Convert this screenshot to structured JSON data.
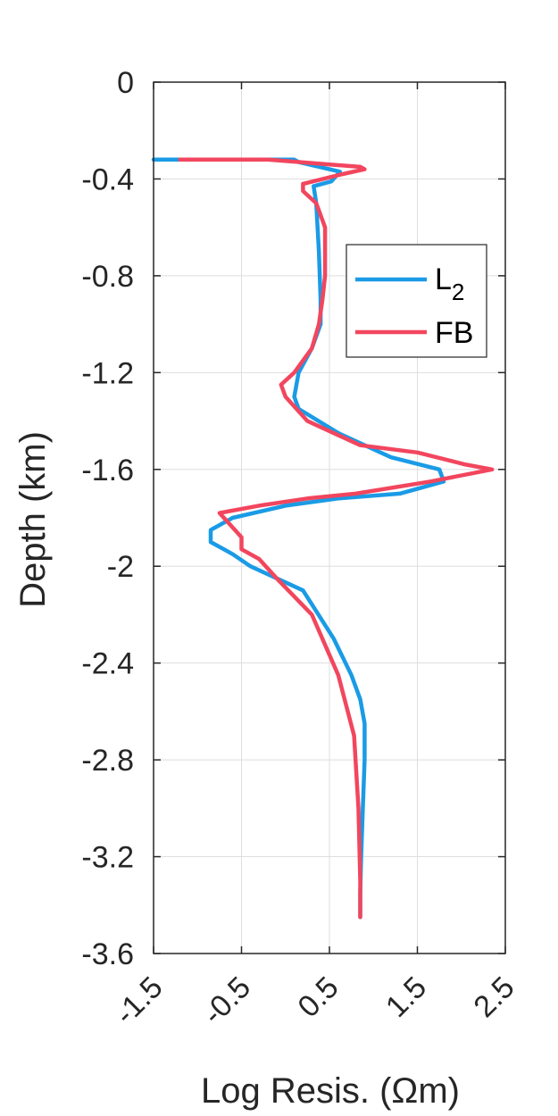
{
  "chart_data": {
    "type": "line",
    "xlabel": "Log Resis. (Ωm)",
    "ylabel": "Depth (km)",
    "xlim": [
      -1.5,
      2.5
    ],
    "ylim": [
      -3.6,
      0
    ],
    "x_ticks": [
      -1.5,
      -0.5,
      0.5,
      1.5,
      2.5
    ],
    "x_tick_labels": [
      "-1.5",
      "-0.5",
      "0.5",
      "1.5",
      "2.5"
    ],
    "y_ticks": [
      0,
      -0.4,
      -0.8,
      -1.2,
      -1.6,
      -2,
      -2.4,
      -2.8,
      -3.2,
      -3.6
    ],
    "y_tick_labels": [
      "0",
      "-0.4",
      "-0.8",
      "-1.2",
      "-1.6",
      "-2",
      "-2.4",
      "-2.8",
      "-3.2",
      "-3.6"
    ],
    "grid": true,
    "legend_position": "top-right",
    "series": [
      {
        "name": "L2",
        "legend_main": "L",
        "legend_sub": "2",
        "color": "#1A9BE6",
        "x": [
          -1.5,
          0.1,
          0.15,
          0.62,
          0.52,
          0.32,
          0.35,
          0.38,
          0.4,
          0.4,
          0.3,
          0.15,
          0.1,
          0.15,
          0.6,
          1.2,
          1.75,
          1.8,
          1.3,
          0.6,
          0.0,
          -0.6,
          -0.85,
          -0.85,
          -0.6,
          -0.4,
          0.2,
          0.55,
          0.75,
          0.85,
          0.9,
          0.9,
          0.88,
          0.86,
          0.85,
          0.85
        ],
        "y": [
          -0.32,
          -0.32,
          -0.33,
          -0.37,
          -0.41,
          -0.43,
          -0.5,
          -0.7,
          -0.9,
          -1.0,
          -1.1,
          -1.2,
          -1.3,
          -1.35,
          -1.45,
          -1.55,
          -1.6,
          -1.65,
          -1.7,
          -1.72,
          -1.75,
          -1.8,
          -1.85,
          -1.9,
          -1.95,
          -2.0,
          -2.1,
          -2.3,
          -2.45,
          -2.55,
          -2.65,
          -2.8,
          -3.0,
          -3.2,
          -3.35,
          -3.45
        ]
      },
      {
        "name": "FB",
        "color": "#F2465E",
        "x": [
          -1.2,
          -0.2,
          0.85,
          0.9,
          0.65,
          0.2,
          0.2,
          0.35,
          0.45,
          0.45,
          0.42,
          0.38,
          0.3,
          0.1,
          -0.05,
          0.0,
          0.25,
          0.85,
          1.5,
          2.05,
          2.35,
          1.65,
          0.8,
          0.25,
          -0.3,
          -0.75,
          -0.5,
          -0.5,
          -0.3,
          -0.1,
          0.3,
          0.6,
          0.78,
          0.83,
          0.85,
          0.85
        ],
        "y": [
          -0.32,
          -0.32,
          -0.35,
          -0.36,
          -0.38,
          -0.42,
          -0.45,
          -0.5,
          -0.6,
          -0.8,
          -0.9,
          -1.0,
          -1.1,
          -1.2,
          -1.25,
          -1.3,
          -1.4,
          -1.5,
          -1.53,
          -1.58,
          -1.6,
          -1.65,
          -1.7,
          -1.72,
          -1.75,
          -1.78,
          -1.88,
          -1.93,
          -1.97,
          -2.05,
          -2.2,
          -2.45,
          -2.7,
          -3.0,
          -3.3,
          -3.45
        ]
      }
    ]
  }
}
